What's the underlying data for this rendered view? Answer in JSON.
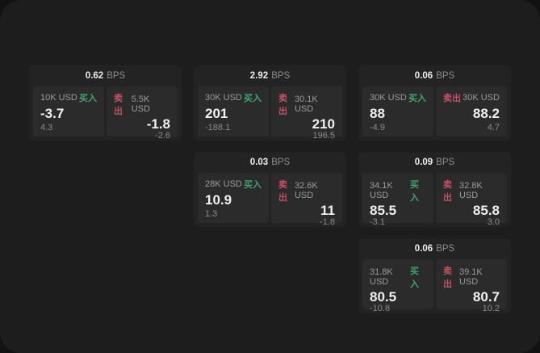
{
  "labels": {
    "bps_unit": "BPS",
    "buy": "买入",
    "sell": "卖出"
  },
  "colors": {
    "buy": "#3fa56b",
    "sell": "#c64f63",
    "background": "#1d1d1e",
    "card": "#232323",
    "panel": "#2b2b2b"
  },
  "cards": [
    {
      "bps": "0.62",
      "buy": {
        "size": "10K USD",
        "value": "-3.7",
        "sub": "4.3"
      },
      "sell": {
        "size": "5.5K USD",
        "value": "-1.8",
        "sub": "-2.6"
      }
    },
    {
      "bps": "2.92",
      "buy": {
        "size": "30K USD",
        "value": "201",
        "sub": "-188.1"
      },
      "sell": {
        "size": "30.1K USD",
        "value": "210",
        "sub": "196.5"
      }
    },
    {
      "bps": "0.06",
      "buy": {
        "size": "30K USD",
        "value": "88",
        "sub": "-4.9"
      },
      "sell": {
        "size": "30K USD",
        "value": "88.2",
        "sub": "4.7"
      }
    },
    {
      "bps": "0.03",
      "buy": {
        "size": "28K USD",
        "value": "10.9",
        "sub": "1.3"
      },
      "sell": {
        "size": "32.6K USD",
        "value": "11",
        "sub": "-1.8"
      }
    },
    {
      "bps": "0.09",
      "buy": {
        "size": "34.1K USD",
        "value": "85.5",
        "sub": "-3.1"
      },
      "sell": {
        "size": "32.8K USD",
        "value": "85.8",
        "sub": "3.0"
      }
    },
    {
      "bps": "0.06",
      "buy": {
        "size": "31.8K USD",
        "value": "80.5",
        "sub": "-10.8"
      },
      "sell": {
        "size": "39.1K USD",
        "value": "80.7",
        "sub": "10.2"
      }
    }
  ]
}
